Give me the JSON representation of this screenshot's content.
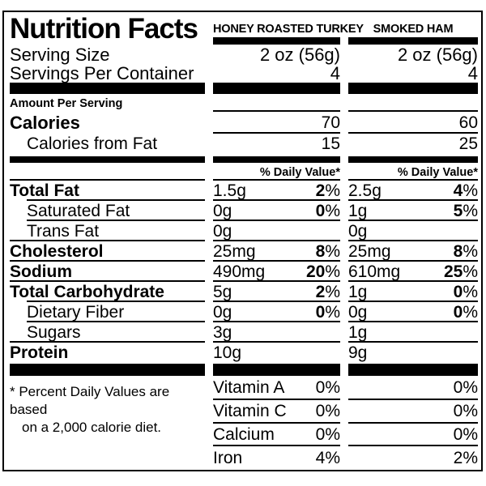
{
  "title": "Nutrition Facts",
  "percent_sign": "%",
  "columns": [
    {
      "name": "HONEY ROASTED TURKEY"
    },
    {
      "name": "SMOKED HAM"
    }
  ],
  "serving": {
    "size_label": "Serving Size",
    "size_values": [
      "2 oz (56g)",
      "2 oz (56g)"
    ],
    "per_container_label": "Servings Per Container",
    "per_container_values": [
      "4",
      "4"
    ]
  },
  "amount_per_serving_label": "Amount Per Serving",
  "calories": {
    "label": "Calories",
    "values": [
      "70",
      "60"
    ]
  },
  "calories_from_fat": {
    "label": "Calories from Fat",
    "values": [
      "15",
      "25"
    ]
  },
  "daily_value_header": "% Daily Value*",
  "nutrients": [
    {
      "label": "Total Fat",
      "bold": true,
      "indent": false,
      "amounts": [
        "1.5g",
        "2.5g"
      ],
      "dv": [
        "2",
        "4"
      ],
      "sep_indent": true
    },
    {
      "label": "Saturated Fat",
      "bold": false,
      "indent": true,
      "amounts": [
        "0g",
        "1g"
      ],
      "dv": [
        "0",
        "5"
      ],
      "sep_indent": true
    },
    {
      "label": "Trans Fat",
      "bold": false,
      "indent": true,
      "amounts": [
        "0g",
        "0g"
      ],
      "dv": [
        "",
        ""
      ],
      "sep_indent": false
    },
    {
      "label": "Cholesterol",
      "bold": true,
      "indent": false,
      "amounts": [
        "25mg",
        "25mg"
      ],
      "dv": [
        "8",
        "8"
      ],
      "sep_indent": false
    },
    {
      "label": "Sodium",
      "bold": true,
      "indent": false,
      "amounts": [
        "490mg",
        "610mg"
      ],
      "dv": [
        "20",
        "25"
      ],
      "sep_indent": false
    },
    {
      "label": "Total Carbohydrate",
      "bold": true,
      "indent": false,
      "amounts": [
        "5g",
        "1g"
      ],
      "dv": [
        "2",
        "0"
      ],
      "sep_indent": true
    },
    {
      "label": "Dietary Fiber",
      "bold": false,
      "indent": true,
      "amounts": [
        "0g",
        "0g"
      ],
      "dv": [
        "0",
        "0"
      ],
      "sep_indent": true
    },
    {
      "label": "Sugars",
      "bold": false,
      "indent": true,
      "amounts": [
        "3g",
        "1g"
      ],
      "dv": [
        "",
        ""
      ],
      "sep_indent": false
    },
    {
      "label": "Protein",
      "bold": true,
      "indent": false,
      "amounts": [
        "10g",
        "9g"
      ],
      "dv": [
        "",
        ""
      ],
      "sep_indent": false
    }
  ],
  "vitamins": [
    {
      "label": "Vitamin A",
      "values": [
        "0%",
        "0%"
      ]
    },
    {
      "label": "Vitamin C",
      "values": [
        "0%",
        "0%"
      ]
    },
    {
      "label": "Calcium",
      "values": [
        "0%",
        "0%"
      ]
    },
    {
      "label": "Iron",
      "values": [
        "4%",
        "2%"
      ]
    }
  ],
  "footnote": {
    "line1": "* Percent Daily Values are based",
    "line2": "on a 2,000 calorie diet."
  },
  "colors": {
    "ink": "#000000",
    "paper": "#ffffff"
  }
}
